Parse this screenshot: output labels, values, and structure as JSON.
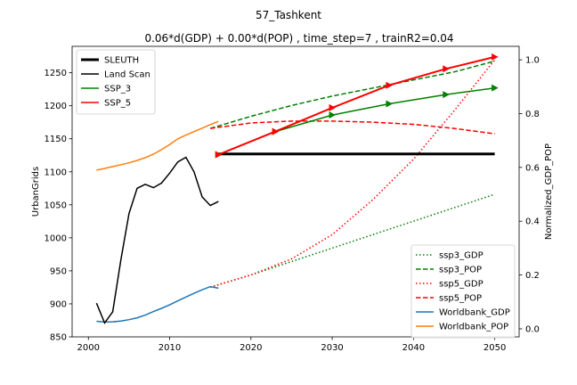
{
  "chart_data": {
    "type": "line",
    "suptitle": "57_Tashkent",
    "title": "0.06*d(GDP) + 0.00*d(POP) , time_step=7 , trainR2=0.04",
    "xlabel": "",
    "ylabel": "UrbanGrids",
    "ylabel_right": "Normalized_GDP_POP",
    "xlim": [
      1998,
      2053
    ],
    "ylim": [
      850,
      1290
    ],
    "ylim_right": [
      -0.03,
      1.05
    ],
    "xticks": [
      2000,
      2010,
      2020,
      2030,
      2040,
      2050
    ],
    "yticks": [
      850,
      900,
      950,
      1000,
      1050,
      1100,
      1150,
      1200,
      1250
    ],
    "yticks_right": [
      0.0,
      0.2,
      0.4,
      0.6,
      0.8,
      1.0
    ],
    "yticks_right_labels": [
      "0.0",
      "0.2",
      "0.4",
      "0.6",
      "0.8",
      "1.0"
    ],
    "legend_left": {
      "placement": "top-left",
      "entries": [
        {
          "name": "SLEUTH",
          "color": "#000000",
          "style": "solid-thick"
        },
        {
          "name": "Land Scan",
          "color": "#000000",
          "style": "solid"
        },
        {
          "name": "SSP_3",
          "color": "#008000",
          "style": "solid"
        },
        {
          "name": "SSP_5",
          "color": "#ff0000",
          "style": "solid"
        }
      ]
    },
    "legend_right": {
      "placement": "bottom-right",
      "entries": [
        {
          "name": "ssp3_GDP",
          "color": "#008000",
          "style": "dotted"
        },
        {
          "name": "ssp3_POP",
          "color": "#008000",
          "style": "dashed"
        },
        {
          "name": "ssp5_GDP",
          "color": "#ff0000",
          "style": "dotted"
        },
        {
          "name": "ssp5_POP",
          "color": "#ff0000",
          "style": "dashed"
        },
        {
          "name": "Worldbank_GDP",
          "color": "#1f77b4",
          "style": "solid"
        },
        {
          "name": "Worldbank_POP",
          "color": "#ff7f0e",
          "style": "solid"
        }
      ]
    },
    "series_left": [
      {
        "name": "SLEUTH",
        "color": "#000000",
        "style": "solid-thick",
        "x": [
          2016,
          2050
        ],
        "y": [
          1127,
          1127
        ]
      },
      {
        "name": "Land Scan",
        "color": "#000000",
        "style": "solid",
        "x": [
          2001,
          2002,
          2003,
          2004,
          2005,
          2006,
          2007,
          2008,
          2009,
          2010,
          2011,
          2012,
          2013,
          2014,
          2015,
          2016
        ],
        "y": [
          901,
          871,
          888,
          967,
          1037,
          1075,
          1081,
          1076,
          1083,
          1098,
          1115,
          1122,
          1100,
          1062,
          1049,
          1055
        ]
      },
      {
        "name": "SSP_3",
        "color": "#008000",
        "style": "solid",
        "markers": "triangle-right",
        "x": [
          2016,
          2023,
          2030,
          2037,
          2044,
          2050
        ],
        "y": [
          1126,
          1161,
          1186,
          1203,
          1217,
          1227
        ]
      },
      {
        "name": "SSP_5",
        "color": "#ff0000",
        "style": "solid",
        "markers": "triangle-right",
        "x": [
          2016,
          2023,
          2030,
          2037,
          2044,
          2050
        ],
        "y": [
          1126,
          1161,
          1197,
          1231,
          1256,
          1274
        ]
      }
    ],
    "series_right": [
      {
        "name": "ssp3_GDP",
        "color": "#008000",
        "style": "dotted",
        "x": [
          2015,
          2020,
          2025,
          2030,
          2035,
          2040,
          2045,
          2050
        ],
        "y": [
          0.155,
          0.2,
          0.25,
          0.3,
          0.35,
          0.4,
          0.45,
          0.5
        ]
      },
      {
        "name": "ssp3_POP",
        "color": "#008000",
        "style": "dashed",
        "x": [
          2015,
          2020,
          2025,
          2030,
          2035,
          2040,
          2045,
          2050
        ],
        "y": [
          0.745,
          0.79,
          0.83,
          0.865,
          0.895,
          0.925,
          0.955,
          0.995
        ]
      },
      {
        "name": "ssp5_GDP",
        "color": "#ff0000",
        "style": "dotted",
        "x": [
          2015,
          2020,
          2025,
          2030,
          2035,
          2040,
          2045,
          2050
        ],
        "y": [
          0.155,
          0.2,
          0.26,
          0.35,
          0.48,
          0.63,
          0.81,
          1.0
        ]
      },
      {
        "name": "ssp5_POP",
        "color": "#ff0000",
        "style": "dashed",
        "x": [
          2015,
          2020,
          2025,
          2030,
          2035,
          2040,
          2045,
          2050
        ],
        "y": [
          0.745,
          0.765,
          0.772,
          0.772,
          0.768,
          0.76,
          0.745,
          0.725
        ]
      },
      {
        "name": "Worldbank_GDP",
        "color": "#1f77b4",
        "style": "solid",
        "x": [
          2001,
          2002,
          2003,
          2004,
          2005,
          2006,
          2007,
          2008,
          2009,
          2010,
          2011,
          2012,
          2013,
          2014,
          2015,
          2016
        ],
        "y": [
          0.028,
          0.025,
          0.026,
          0.029,
          0.034,
          0.041,
          0.051,
          0.064,
          0.076,
          0.089,
          0.104,
          0.118,
          0.132,
          0.145,
          0.157,
          0.151
        ]
      },
      {
        "name": "Worldbank_POP",
        "color": "#ff7f0e",
        "style": "solid",
        "x": [
          2001,
          2002,
          2003,
          2004,
          2005,
          2006,
          2007,
          2008,
          2009,
          2010,
          2011,
          2012,
          2013,
          2014,
          2015,
          2016
        ],
        "y": [
          0.59,
          0.596,
          0.603,
          0.61,
          0.617,
          0.626,
          0.636,
          0.649,
          0.666,
          0.685,
          0.706,
          0.72,
          0.733,
          0.746,
          0.759,
          0.771
        ]
      }
    ]
  }
}
